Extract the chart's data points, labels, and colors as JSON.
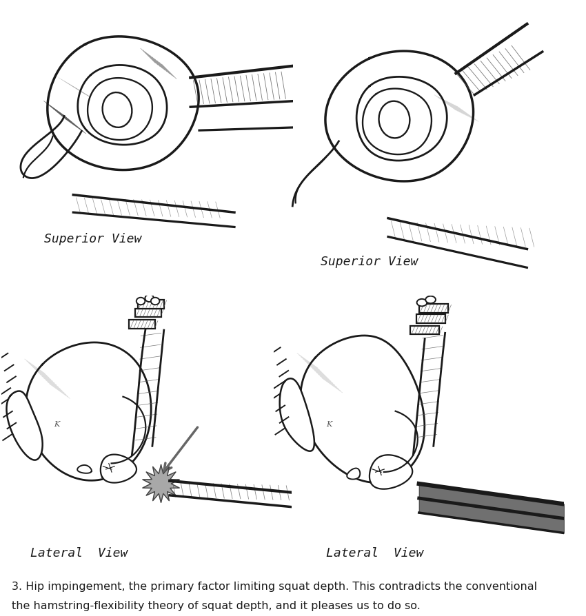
{
  "background_color": "#ffffff",
  "caption_line1": "3. Hip impingement, the primary factor limiting squat depth. This contradicts the conventional",
  "caption_line2": "the hamstring-flexibility theory of squat depth, and it pleases us to do so.",
  "caption_fontsize": 11.5,
  "caption_color": "#1a1a1a",
  "label_top_left": "Superior View",
  "label_top_right": "Superior View",
  "label_bot_left": "Lateral  View",
  "label_bot_right": "Lateral  View",
  "label_fontsize": 13,
  "label_color": "#1a1a1a",
  "line_color": "#1a1a1a",
  "line_width": 2.0,
  "hatch_color": "#555555",
  "shade_color": "#888888"
}
